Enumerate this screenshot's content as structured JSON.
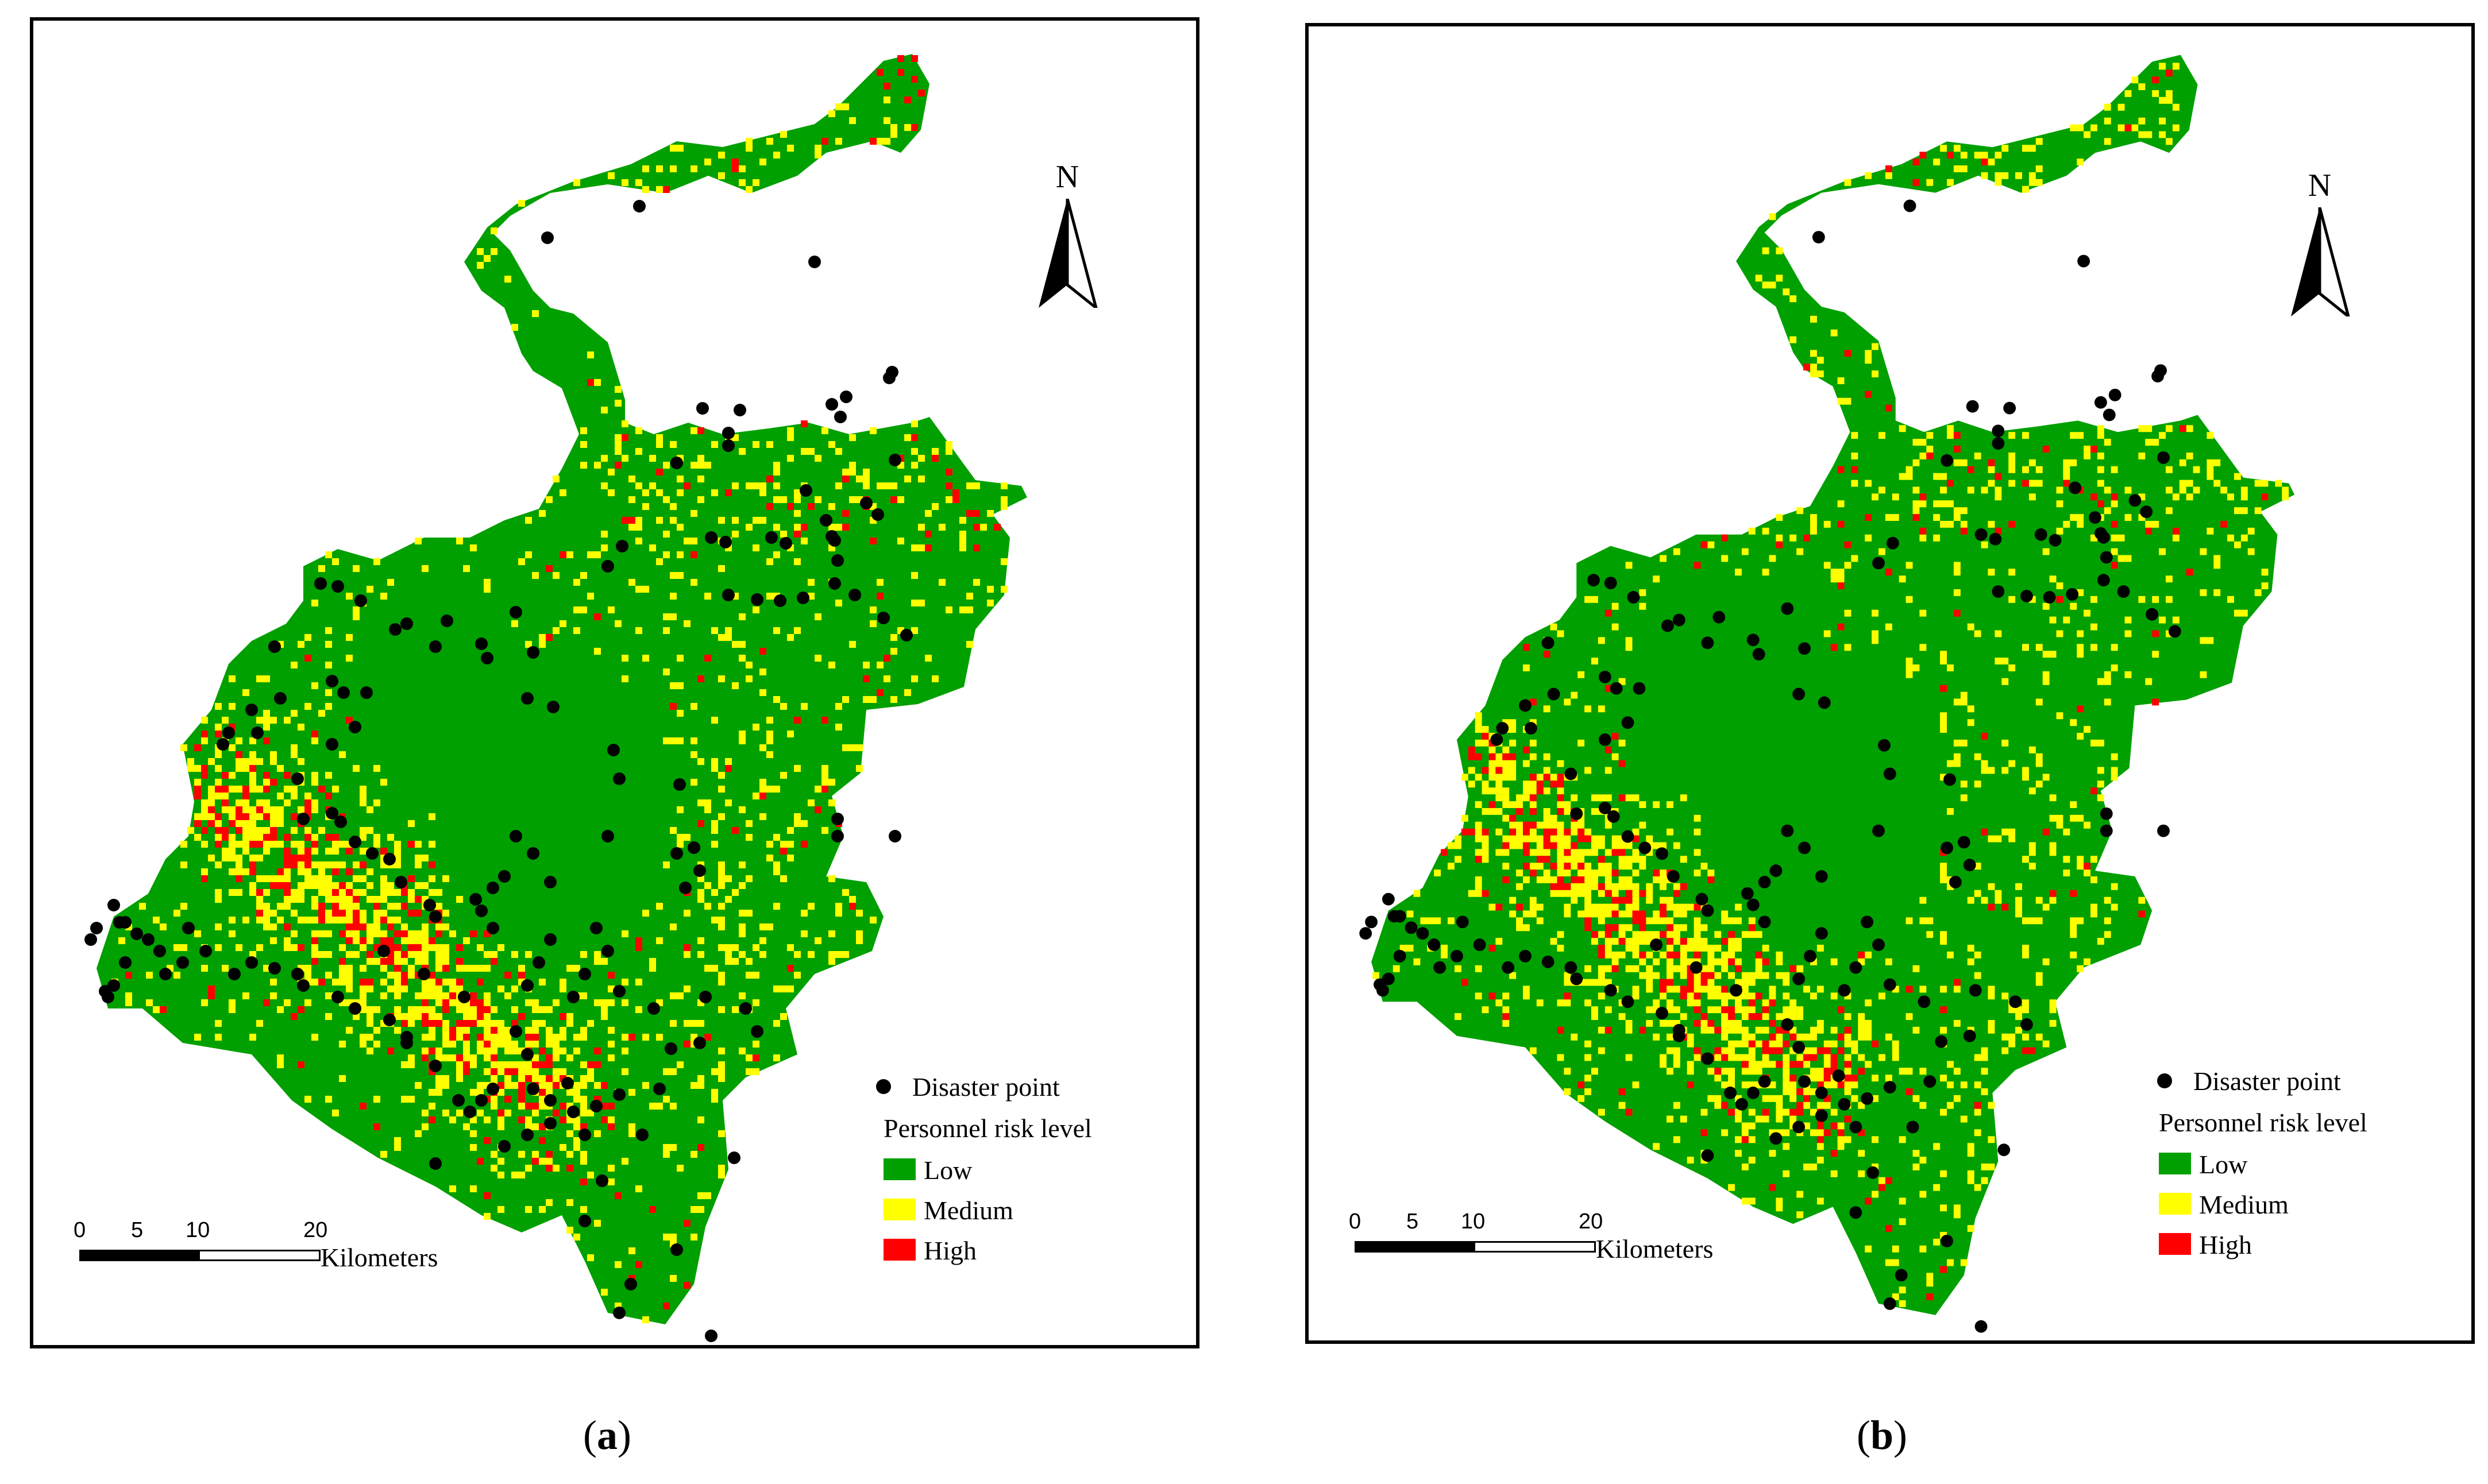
{
  "panels": [
    {
      "id": "a",
      "caption_open": "(",
      "caption_letter": "a",
      "caption_close": ")",
      "north_label": "N",
      "legend": {
        "point_label": "Disaster point",
        "title": "Personnel risk level",
        "classes": [
          {
            "label": "Low",
            "color": "#00a000"
          },
          {
            "label": "Medium",
            "color": "#ffff00"
          },
          {
            "label": "High",
            "color": "#ff0000"
          }
        ]
      },
      "scale": {
        "ticks": [
          "0",
          "5",
          "10",
          "20"
        ],
        "units": "Kilometers"
      }
    },
    {
      "id": "b",
      "caption_open": "(",
      "caption_letter": "b",
      "caption_close": ")",
      "north_label": "N",
      "legend": {
        "point_label": "Disaster point",
        "title": "Personnel risk level",
        "classes": [
          {
            "label": "Low",
            "color": "#00a000"
          },
          {
            "label": "Medium",
            "color": "#ffff00"
          },
          {
            "label": "High",
            "color": "#ff0000"
          }
        ]
      },
      "scale": {
        "ticks": [
          "0",
          "5",
          "10",
          "20"
        ],
        "units": "Kilometers"
      }
    }
  ],
  "colors": {
    "low": "#00a000",
    "medium": "#ffff00",
    "high": "#ff0000",
    "point": "#000000",
    "frame": "#000000"
  }
}
